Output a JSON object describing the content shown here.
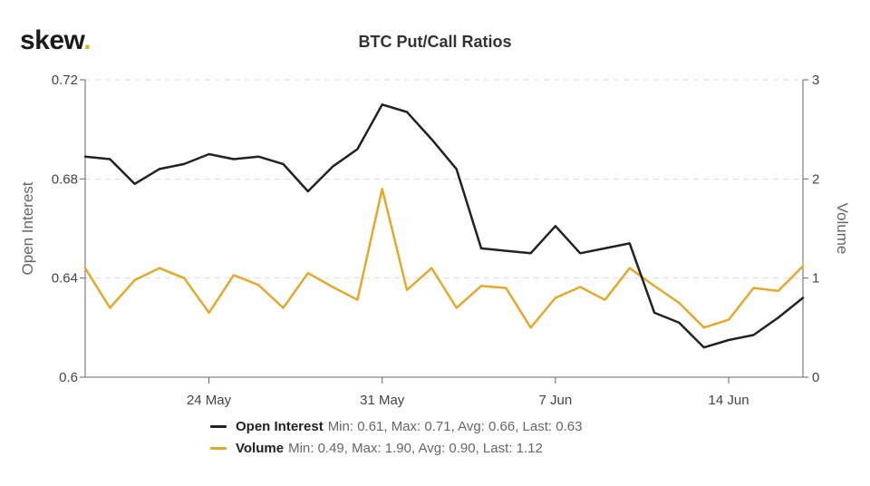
{
  "header": {
    "logo_text": "skew",
    "logo_dot": "."
  },
  "chart_data": {
    "type": "line",
    "title": "BTC Put/Call Ratios",
    "x_ticks": [
      "24 May",
      "31 May",
      "7 Jun",
      "14 Jun"
    ],
    "x_tick_index": [
      5,
      12,
      19,
      26
    ],
    "y_left": {
      "label": "Open Interest",
      "ticks": [
        "0.72",
        "0.68",
        "0.64",
        "0.6"
      ],
      "range": [
        0.6,
        0.72
      ]
    },
    "y_right": {
      "label": "Volume",
      "ticks": [
        "3",
        "2",
        "1",
        "0"
      ],
      "range": [
        0,
        3
      ]
    },
    "grid": true,
    "legend_position": "bottom",
    "x": [
      "19 May",
      "20 May",
      "21 May",
      "22 May",
      "23 May",
      "24 May",
      "25 May",
      "26 May",
      "27 May",
      "28 May",
      "29 May",
      "30 May",
      "31 May",
      "1 Jun",
      "2 Jun",
      "3 Jun",
      "4 Jun",
      "5 Jun",
      "6 Jun",
      "7 Jun",
      "8 Jun",
      "9 Jun",
      "10 Jun",
      "11 Jun",
      "12 Jun",
      "13 Jun",
      "14 Jun",
      "15 Jun",
      "16 Jun",
      "17 Jun"
    ],
    "series": [
      {
        "name": "Open Interest",
        "axis": "left",
        "color": "#222222",
        "values": [
          0.689,
          0.688,
          0.678,
          0.684,
          0.686,
          0.69,
          0.688,
          0.689,
          0.686,
          0.675,
          0.685,
          0.692,
          0.71,
          0.707,
          0.696,
          0.684,
          0.652,
          0.651,
          0.65,
          0.661,
          0.65,
          0.652,
          0.654,
          0.626,
          0.622,
          0.612,
          0.615,
          0.617,
          0.624,
          0.632
        ],
        "legend_stats": "Min: 0.61, Max: 0.71, Avg: 0.66, Last: 0.63"
      },
      {
        "name": "Volume",
        "axis": "right",
        "color": "#e3a92b",
        "values": [
          1.1,
          0.7,
          0.98,
          1.1,
          1.0,
          0.65,
          1.03,
          0.93,
          0.7,
          1.05,
          0.91,
          0.78,
          1.9,
          0.88,
          1.1,
          0.7,
          0.92,
          0.9,
          0.5,
          0.8,
          0.91,
          0.78,
          1.1,
          0.92,
          0.75,
          0.5,
          0.58,
          0.9,
          0.87,
          1.12
        ],
        "legend_stats": "Min: 0.49, Max: 1.90, Avg: 0.90, Last: 1.12"
      }
    ]
  }
}
